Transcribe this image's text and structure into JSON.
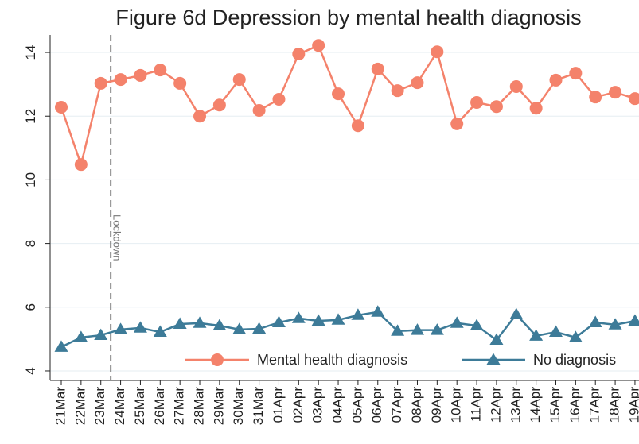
{
  "chart_data": {
    "type": "line",
    "title": "Figure 6d Depression by mental health diagnosis",
    "categories": [
      "21Mar",
      "22Mar",
      "23Mar",
      "24Mar",
      "25Mar",
      "26Mar",
      "27Mar",
      "28Mar",
      "29Mar",
      "30Mar",
      "31Mar",
      "01Apr",
      "02Apr",
      "03Apr",
      "04Apr",
      "05Apr",
      "06Apr",
      "07Apr",
      "08Apr",
      "09Apr",
      "10Apr",
      "11Apr",
      "12Apr",
      "13Apr",
      "14Apr",
      "15Apr",
      "16Apr",
      "17Apr",
      "18Apr",
      "19Apr"
    ],
    "series": [
      {
        "name": "Mental health diagnosis",
        "color": "#f4826b",
        "marker": "circle",
        "values": [
          12.28,
          10.48,
          13.03,
          13.15,
          13.28,
          13.45,
          13.03,
          12.0,
          12.35,
          13.15,
          12.18,
          12.53,
          13.95,
          14.22,
          12.7,
          11.7,
          13.48,
          12.8,
          13.05,
          14.02,
          11.76,
          12.43,
          12.3,
          12.93,
          12.25,
          13.13,
          13.35,
          12.6,
          12.75,
          12.55
        ]
      },
      {
        "name": "No diagnosis",
        "color": "#3d7b98",
        "marker": "triangle",
        "values": [
          4.75,
          5.05,
          5.12,
          5.3,
          5.35,
          5.22,
          5.47,
          5.5,
          5.42,
          5.3,
          5.32,
          5.52,
          5.65,
          5.57,
          5.6,
          5.75,
          5.85,
          5.25,
          5.28,
          5.28,
          5.5,
          5.42,
          4.97,
          5.77,
          5.1,
          5.22,
          5.05,
          5.52,
          5.45,
          5.57
        ]
      }
    ],
    "annotation": {
      "text": "Lockdown",
      "between": [
        "23Mar",
        "24Mar"
      ]
    },
    "ylim": [
      3.7,
      14.5
    ],
    "yticks": [
      4,
      6,
      8,
      10,
      12,
      14
    ],
    "grid": true,
    "legend": "lower right"
  }
}
